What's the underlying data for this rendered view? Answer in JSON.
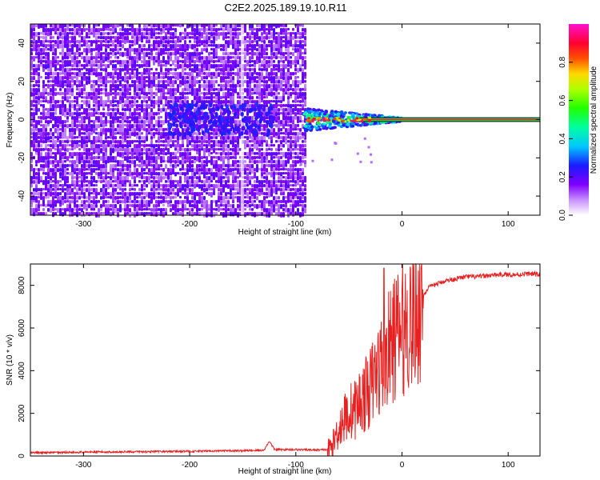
{
  "chart_data": [
    {
      "type": "heatmap",
      "title": "C2E2.2025.189.19.10.R11",
      "xlabel": "Height of straight line (km)",
      "ylabel": "Frequency (Hz)",
      "xlim": [
        -350,
        130
      ],
      "ylim": [
        -50,
        50
      ],
      "xticks": [
        -300,
        -200,
        -100,
        0,
        100
      ],
      "yticks": [
        -40,
        -20,
        0,
        20,
        40
      ],
      "colorbar": {
        "label": "Normalized spectral amplitude",
        "range": [
          0,
          1
        ],
        "ticks": [
          "0.0",
          "0.2",
          "0.4",
          "0.6",
          "0.8"
        ],
        "colormap": "rainbow (white → violet → blue → cyan → green → yellow → red → magenta)"
      },
      "regions": [
        {
          "x_range": [
            -350,
            -92
          ],
          "description": "broadband noise, low amplitude (0.1–0.3)",
          "freq_range": [
            -50,
            50
          ]
        },
        {
          "x_range": [
            -92,
            0
          ],
          "description": "carrier emerging at 0 Hz with spread ±5 Hz",
          "freq_range": [
            -6,
            6
          ]
        },
        {
          "x_range": [
            0,
            130
          ],
          "description": "strong narrow carrier at 0 Hz",
          "freq_range": [
            -1,
            1
          ]
        }
      ]
    },
    {
      "type": "line",
      "xlabel": "Height of straight line (km)",
      "ylabel": "SNR (10 * v/v)",
      "xlim": [
        -350,
        130
      ],
      "ylim": [
        0,
        9000
      ],
      "xticks": [
        -300,
        -200,
        -100,
        0,
        100
      ],
      "yticks": [
        0,
        2000,
        4000,
        6000,
        8000
      ],
      "series": [
        {
          "color": "#e82020",
          "x": [
            -350,
            -300,
            -250,
            -200,
            -150,
            -130,
            -125,
            -120,
            -100,
            -80,
            -70,
            -65,
            -60,
            -55,
            -50,
            -45,
            -40,
            -35,
            -30,
            -25,
            -20,
            -15,
            -10,
            -5,
            0,
            5,
            10,
            15,
            20,
            25,
            30,
            35,
            40,
            50,
            60,
            70,
            80,
            90,
            100,
            110,
            120,
            130
          ],
          "y": [
            150,
            180,
            200,
            220,
            250,
            270,
            700,
            300,
            300,
            280,
            300,
            600,
            1400,
            1800,
            2200,
            2300,
            2700,
            3000,
            3400,
            4000,
            4500,
            5000,
            5500,
            6000,
            6200,
            6500,
            6800,
            7200,
            7500,
            7900,
            8000,
            8100,
            8200,
            8300,
            8400,
            8400,
            8450,
            8500,
            8500,
            8500,
            8550,
            8500
          ]
        }
      ]
    }
  ]
}
